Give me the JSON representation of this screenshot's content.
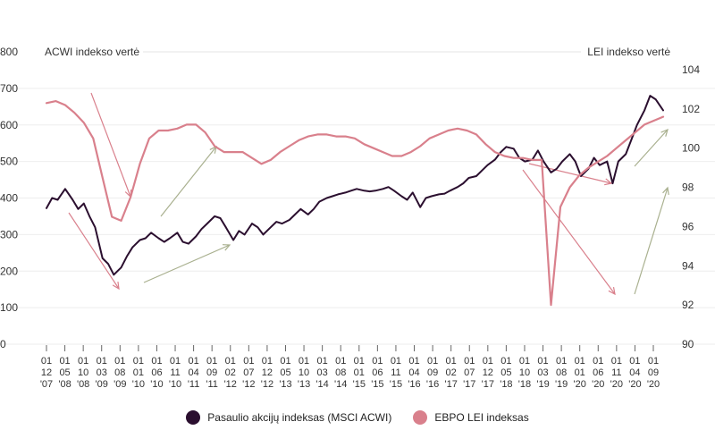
{
  "chart_data": {
    "type": "line",
    "left_axis": {
      "label": "ACWI indekso vertė",
      "ticks": [
        "800",
        "700",
        "600",
        "500",
        "400",
        "300",
        "200",
        "100",
        "0"
      ],
      "range": [
        0,
        800
      ]
    },
    "right_axis": {
      "label": "LEI indekso vertė",
      "ticks": [
        "104",
        "102",
        "100",
        "98",
        "96",
        "94",
        "92",
        "90"
      ],
      "range": [
        90,
        104
      ]
    },
    "x_ticks": [
      [
        "01",
        "12",
        "'07"
      ],
      [
        "01",
        "05",
        "'08"
      ],
      [
        "01",
        "10",
        "'08"
      ],
      [
        "01",
        "03",
        "'09"
      ],
      [
        "01",
        "08",
        "'09"
      ],
      [
        "01",
        "01",
        "'10"
      ],
      [
        "01",
        "06",
        "'10"
      ],
      [
        "01",
        "11",
        "'10"
      ],
      [
        "01",
        "04",
        "'11"
      ],
      [
        "01",
        "09",
        "'11"
      ],
      [
        "01",
        "02",
        "'12"
      ],
      [
        "01",
        "07",
        "'12"
      ],
      [
        "01",
        "12",
        "'12"
      ],
      [
        "01",
        "05",
        "'13"
      ],
      [
        "01",
        "10",
        "'13"
      ],
      [
        "01",
        "03",
        "'14"
      ],
      [
        "01",
        "08",
        "'14"
      ],
      [
        "01",
        "01",
        "'15"
      ],
      [
        "01",
        "06",
        "'15"
      ],
      [
        "01",
        "11",
        "'15"
      ],
      [
        "01",
        "04",
        "'16"
      ],
      [
        "01",
        "09",
        "'16"
      ],
      [
        "01",
        "02",
        "'17"
      ],
      [
        "01",
        "07",
        "'17"
      ],
      [
        "01",
        "12",
        "'17"
      ],
      [
        "01",
        "05",
        "'18"
      ],
      [
        "01",
        "10",
        "'18"
      ],
      [
        "01",
        "03",
        "'19"
      ],
      [
        "01",
        "08",
        "'19"
      ],
      [
        "01",
        "01",
        "'20"
      ],
      [
        "01",
        "06",
        "'20"
      ],
      [
        "01",
        "11",
        "'20"
      ],
      [
        "01",
        "04",
        "'20"
      ],
      [
        "01",
        "09",
        "'20"
      ]
    ],
    "x_range": [
      0,
      33
    ],
    "grid": true,
    "legend_position": "bottom",
    "series": [
      {
        "name": "Pasaulio akcijų indeksas (MSCI ACWI)",
        "axis": "left",
        "color": "#2b0f2f",
        "x": [
          0,
          0.3,
          0.6,
          1,
          1.4,
          1.7,
          2,
          2.3,
          2.6,
          3,
          3.3,
          3.6,
          4,
          4.3,
          4.6,
          5,
          5.3,
          5.6,
          6,
          6.3,
          6.6,
          7,
          7.3,
          7.6,
          8,
          8.3,
          8.6,
          9,
          9.3,
          9.6,
          10,
          10.3,
          10.6,
          11,
          11.3,
          11.6,
          12,
          12.3,
          12.6,
          13,
          13.3,
          13.6,
          14,
          14.3,
          14.6,
          15,
          15.3,
          15.6,
          16,
          16.3,
          16.6,
          17,
          17.3,
          17.6,
          18,
          18.3,
          18.6,
          19,
          19.3,
          19.6,
          20,
          20.3,
          20.6,
          21,
          21.3,
          21.6,
          22,
          22.3,
          22.6,
          23,
          23.3,
          23.6,
          24,
          24.3,
          24.6,
          25,
          25.3,
          25.6,
          26,
          26.3,
          26.6,
          27,
          27.3,
          27.6,
          28,
          28.3,
          28.6,
          29,
          29.3,
          29.6,
          30,
          30.3,
          30.6,
          31,
          31.3,
          31.6,
          32,
          32.3,
          32.6,
          33
        ],
        "values": [
          372,
          400,
          395,
          425,
          395,
          370,
          385,
          350,
          320,
          235,
          220,
          190,
          210,
          240,
          265,
          285,
          290,
          305,
          290,
          280,
          290,
          305,
          280,
          275,
          295,
          315,
          330,
          350,
          345,
          320,
          285,
          310,
          300,
          330,
          320,
          300,
          320,
          335,
          330,
          340,
          355,
          370,
          355,
          370,
          390,
          400,
          405,
          410,
          415,
          420,
          425,
          420,
          418,
          420,
          425,
          430,
          420,
          405,
          395,
          415,
          375,
          400,
          405,
          410,
          412,
          420,
          430,
          440,
          455,
          460,
          475,
          490,
          505,
          525,
          540,
          535,
          510,
          500,
          505,
          530,
          500,
          470,
          480,
          500,
          520,
          500,
          460,
          480,
          510,
          490,
          500,
          440,
          500,
          520,
          560,
          600,
          640,
          680,
          670,
          640
        ],
        "label": ""
      },
      {
        "name": "EBPO LEI indeksas",
        "axis": "right",
        "color": "#d9808c",
        "x": [
          0,
          0.5,
          1,
          1.5,
          2,
          2.5,
          3,
          3.5,
          4,
          4.5,
          5,
          5.5,
          6,
          6.5,
          7,
          7.5,
          8,
          8.5,
          9,
          9.5,
          10,
          10.5,
          11,
          11.5,
          12,
          12.5,
          13,
          13.5,
          14,
          14.5,
          15,
          15.5,
          16,
          16.5,
          17,
          17.5,
          18,
          18.5,
          19,
          19.5,
          20,
          20.5,
          21,
          21.5,
          22,
          22.5,
          23,
          23.5,
          24,
          24.5,
          25,
          25.5,
          26,
          26.5,
          27,
          27.5,
          28,
          28.5,
          29,
          29.5,
          30,
          30.5,
          31,
          31.5,
          32,
          32.5,
          33
        ],
        "values": [
          102.3,
          102.4,
          102.2,
          101.8,
          101.3,
          100.5,
          98.5,
          96.5,
          96.3,
          97.5,
          99.2,
          100.5,
          100.9,
          100.9,
          101.0,
          101.2,
          101.2,
          100.8,
          100.1,
          99.8,
          99.8,
          99.8,
          99.5,
          99.2,
          99.4,
          99.8,
          100.1,
          100.4,
          100.6,
          100.7,
          100.7,
          100.6,
          100.6,
          100.5,
          100.2,
          100.0,
          99.8,
          99.6,
          99.6,
          99.8,
          100.1,
          100.5,
          100.7,
          100.9,
          101.0,
          100.9,
          100.7,
          100.2,
          99.8,
          99.6,
          99.5,
          99.5,
          99.4,
          99.4,
          92.0,
          97.0,
          98.0,
          98.6,
          99.0,
          99.3,
          99.6,
          100.0,
          100.4,
          100.8,
          101.2,
          101.4,
          101.6
        ]
      }
    ]
  },
  "legend": {
    "items": [
      {
        "label": "Pasaulio akcijų indeksas (MSCI ACWI)",
        "color": "#2b0f2f"
      },
      {
        "label": "EBPO LEI indeksas",
        "color": "#d9808c"
      }
    ]
  }
}
